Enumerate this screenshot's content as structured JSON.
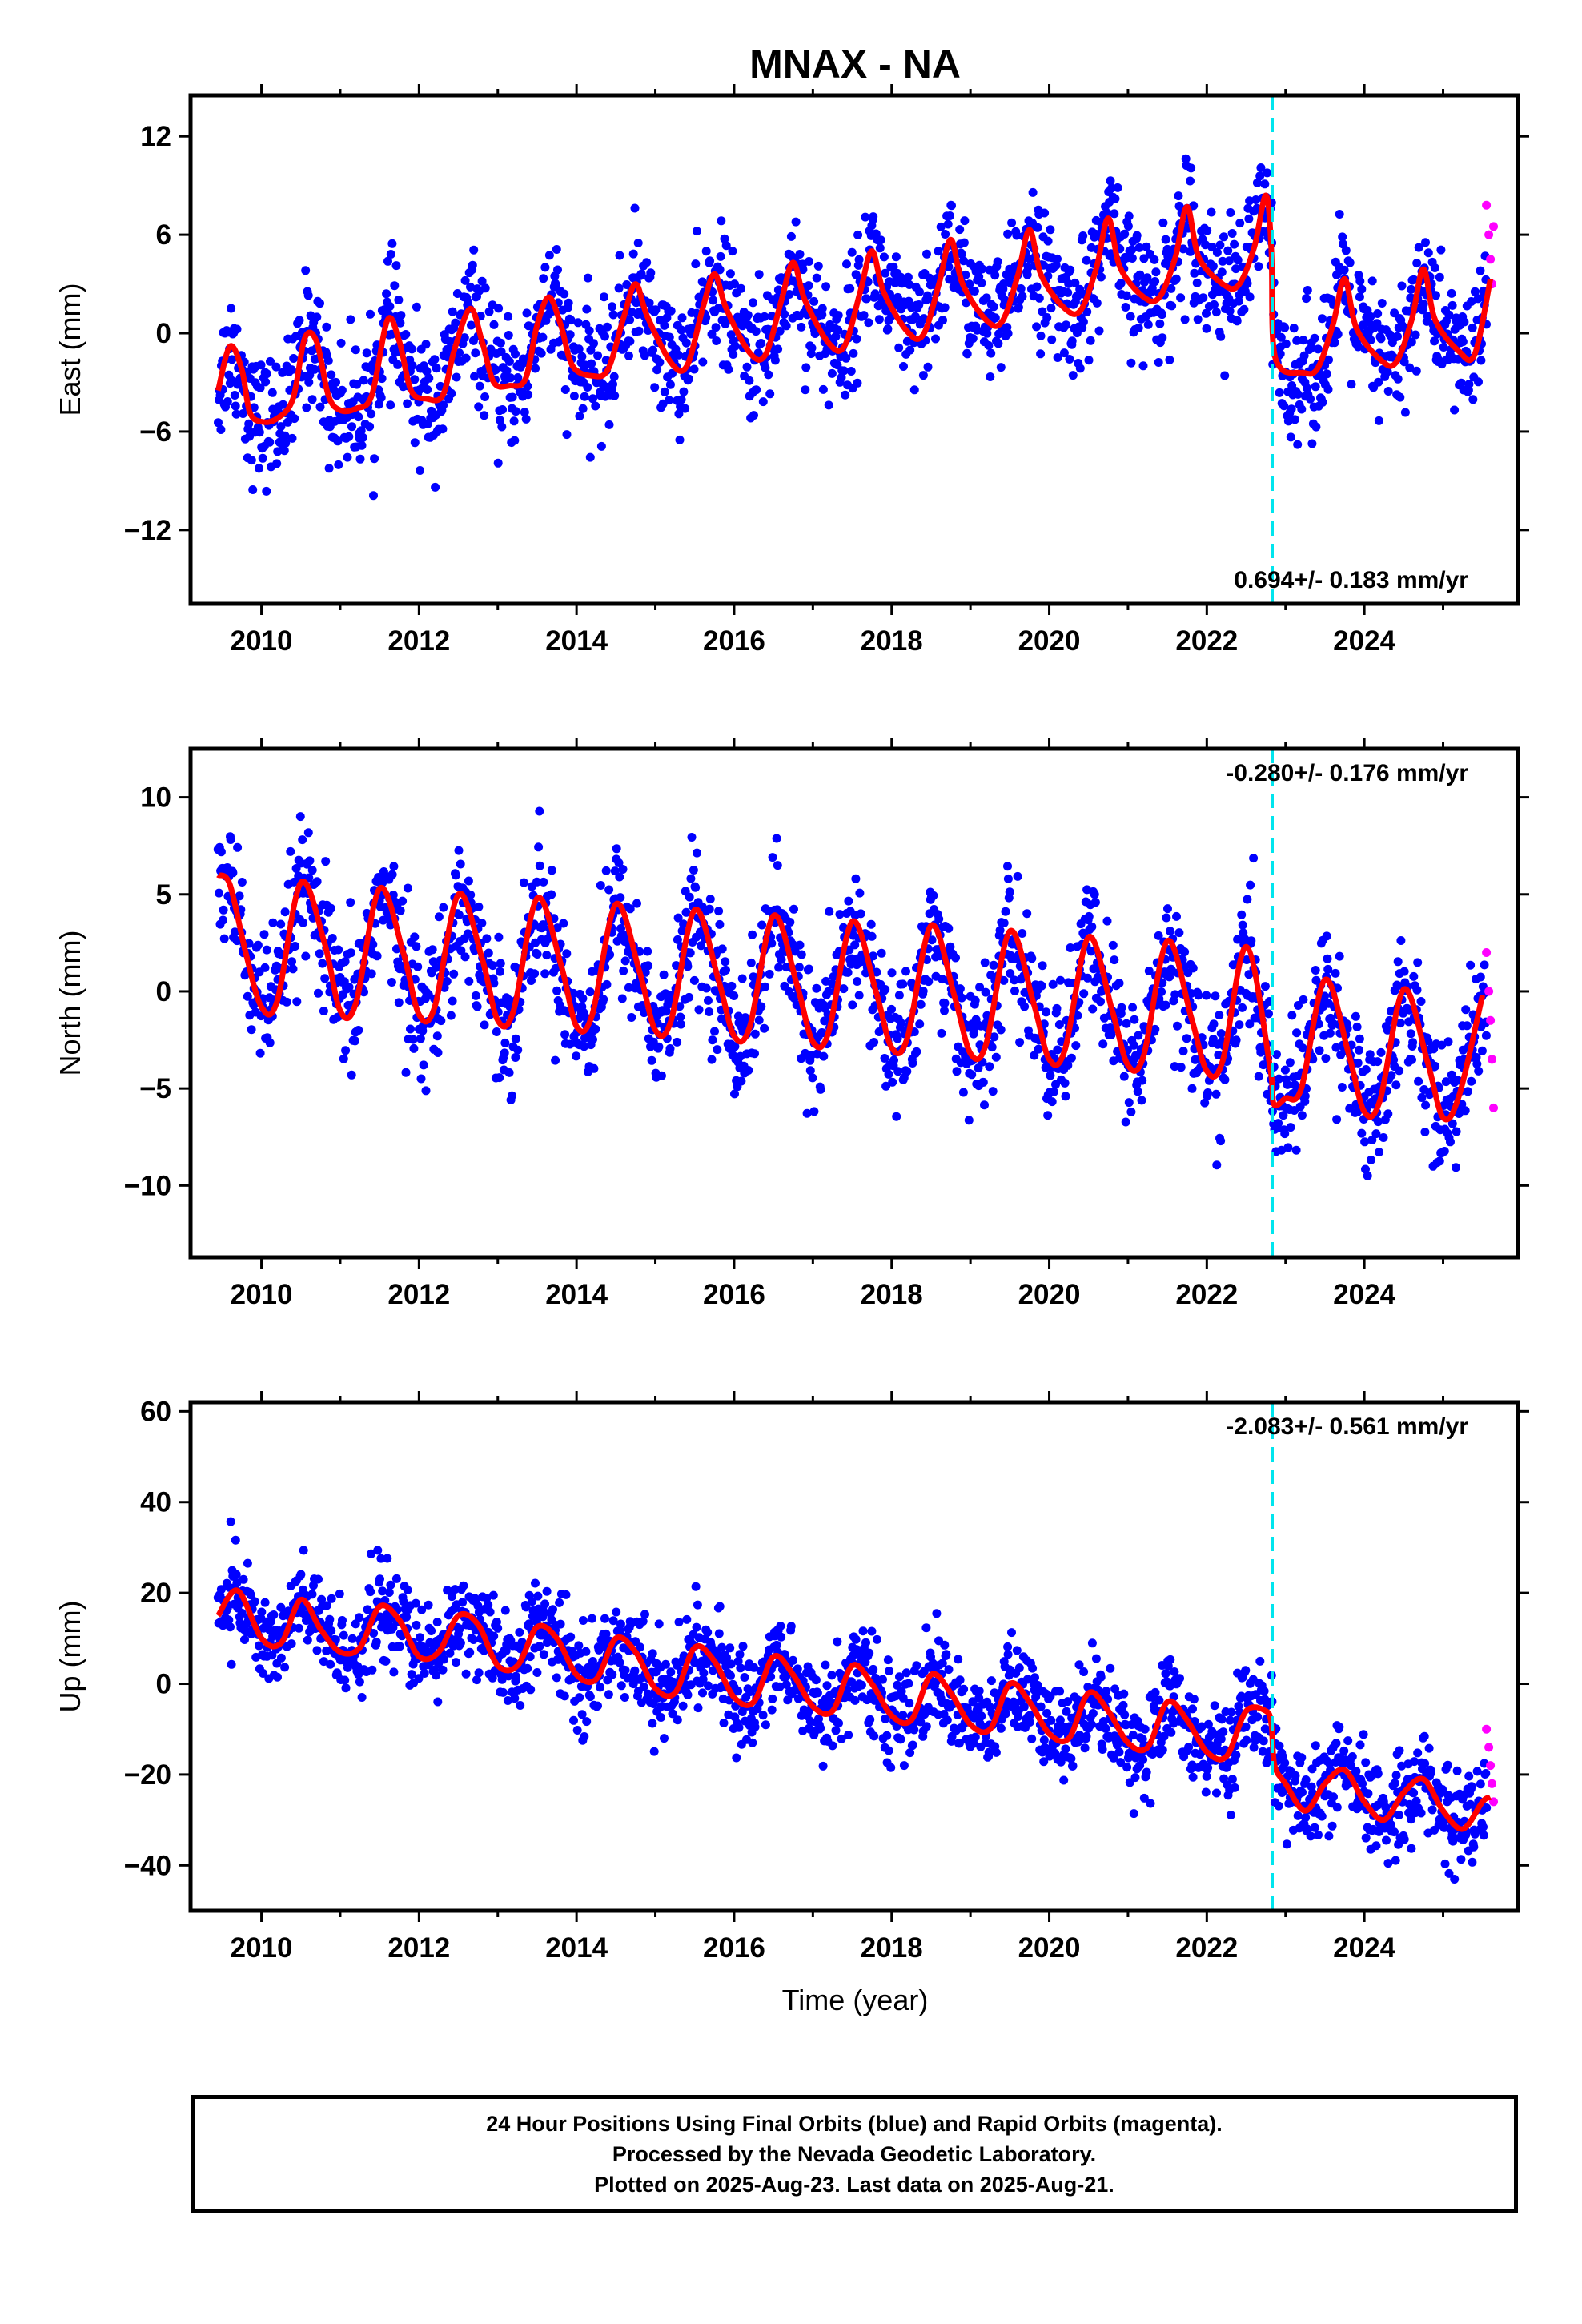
{
  "title": "MNAX - NA",
  "xlabel": "Time (year)",
  "colors": {
    "final_orbits": "#0000ff",
    "rapid_orbits": "#ff00ff",
    "model_fit": "#ff0000",
    "event_line": "#00e5ee"
  },
  "chart_data": [
    {
      "type": "scatter",
      "component": "east",
      "ylabel": "East (mm)",
      "xlim": [
        2009.1,
        2025.95
      ],
      "ylim": [
        -16.5,
        14.5
      ],
      "yticks": [
        -12,
        -6,
        0,
        6,
        12
      ],
      "xticks": [
        2010,
        2012,
        2014,
        2016,
        2018,
        2020,
        2022,
        2024
      ],
      "event_line_x": 2022.83,
      "rate_label": "0.694+/- 0.183 mm/yr",
      "rate_label_position": "bottom-right",
      "model": {
        "x": [
          2009.45,
          2009.6,
          2009.75,
          2009.85,
          2010.0,
          2010.2,
          2010.4,
          2010.55,
          2010.7,
          2010.85,
          2011.0,
          2011.2,
          2011.4,
          2011.6,
          2011.75,
          2011.9,
          2012.1,
          2012.3,
          2012.45,
          2012.65,
          2012.8,
          2012.95,
          2013.15,
          2013.35,
          2013.5,
          2013.65,
          2013.8,
          2013.95,
          2014.2,
          2014.4,
          2014.6,
          2014.75,
          2014.9,
          2015.2,
          2015.4,
          2015.6,
          2015.75,
          2015.9,
          2016.2,
          2016.4,
          2016.6,
          2016.75,
          2016.9,
          2017.2,
          2017.4,
          2017.6,
          2017.75,
          2017.9,
          2018.2,
          2018.4,
          2018.6,
          2018.75,
          2018.9,
          2019.2,
          2019.4,
          2019.6,
          2019.75,
          2019.9,
          2020.2,
          2020.4,
          2020.6,
          2020.75,
          2020.9,
          2021.2,
          2021.4,
          2021.6,
          2021.75,
          2021.9,
          2022.2,
          2022.4,
          2022.6,
          2022.75,
          2022.82,
          2022.84,
          2022.95,
          2023.2,
          2023.4,
          2023.6,
          2023.75,
          2023.9,
          2024.2,
          2024.4,
          2024.6,
          2024.75,
          2024.9,
          2025.2,
          2025.4,
          2025.6
        ],
        "y": [
          -3.5,
          -0.8,
          -2.2,
          -4.8,
          -5.4,
          -5.2,
          -4.0,
          -0.3,
          -0.5,
          -3.8,
          -4.7,
          -4.6,
          -3.8,
          0.8,
          -0.5,
          -3.5,
          -4.0,
          -3.8,
          -1.0,
          1.5,
          -0.5,
          -3.0,
          -3.2,
          -2.8,
          0.5,
          2.2,
          0.5,
          -2.0,
          -2.6,
          -2.2,
          1.0,
          3.0,
          1.0,
          -1.8,
          -2.0,
          1.5,
          3.6,
          1.5,
          -1.2,
          -1.3,
          2.0,
          4.3,
          2.0,
          -0.6,
          -0.8,
          2.5,
          5.0,
          2.5,
          0.1,
          -0.1,
          3.0,
          5.7,
          3.0,
          0.8,
          0.7,
          3.5,
          6.3,
          3.5,
          1.5,
          1.4,
          4.0,
          7.0,
          4.0,
          2.2,
          2.2,
          4.6,
          7.7,
          4.6,
          3.0,
          2.9,
          5.2,
          8.4,
          5.0,
          -0.5,
          -2.2,
          -2.4,
          -2.2,
          0.5,
          3.3,
          0.3,
          -1.6,
          -1.8,
          0.8,
          3.9,
          0.8,
          -1.1,
          -1.3,
          3.3
        ]
      },
      "rapid": {
        "x": [
          2025.55,
          2025.58,
          2025.6,
          2025.62,
          2025.64
        ],
        "y": [
          7.8,
          6.0,
          4.5,
          3.0,
          6.5
        ]
      }
    },
    {
      "type": "scatter",
      "component": "north",
      "ylabel": "North (mm)",
      "xlim": [
        2009.1,
        2025.95
      ],
      "ylim": [
        -13.7,
        12.5
      ],
      "yticks": [
        -10,
        -5,
        0,
        5,
        10
      ],
      "xticks": [
        2010,
        2012,
        2014,
        2016,
        2018,
        2020,
        2022,
        2024
      ],
      "event_line_x": 2022.83,
      "rate_label": "-0.280+/- 0.176 mm/yr",
      "rate_label_position": "top-right",
      "model": {
        "x": [
          2009.45,
          2009.6,
          2009.8,
          2010.0,
          2010.2,
          2010.5,
          2010.8,
          2011.0,
          2011.2,
          2011.5,
          2011.8,
          2012.0,
          2012.2,
          2012.5,
          2012.8,
          2013.0,
          2013.2,
          2013.5,
          2013.8,
          2014.0,
          2014.2,
          2014.5,
          2014.8,
          2015.0,
          2015.2,
          2015.5,
          2015.8,
          2016.0,
          2016.2,
          2016.5,
          2016.8,
          2017.0,
          2017.2,
          2017.5,
          2017.8,
          2018.0,
          2018.2,
          2018.5,
          2018.8,
          2019.0,
          2019.2,
          2019.5,
          2019.8,
          2020.0,
          2020.2,
          2020.5,
          2020.8,
          2021.0,
          2021.2,
          2021.5,
          2021.8,
          2022.0,
          2022.2,
          2022.5,
          2022.8,
          2022.85,
          2023.0,
          2023.2,
          2023.5,
          2023.8,
          2024.0,
          2024.2,
          2024.5,
          2024.8,
          2025.0,
          2025.2,
          2025.5
        ],
        "y": [
          6.0,
          5.5,
          2.0,
          -0.8,
          -0.5,
          5.6,
          2.5,
          -1.0,
          -0.6,
          5.3,
          2.0,
          -1.2,
          -0.8,
          5.0,
          1.7,
          -1.5,
          -1.0,
          4.8,
          1.4,
          -1.8,
          -1.2,
          4.5,
          1.0,
          -2.0,
          -1.5,
          4.2,
          0.6,
          -2.3,
          -1.8,
          3.9,
          0.3,
          -2.6,
          -2.1,
          3.6,
          0.0,
          -2.9,
          -2.4,
          3.4,
          -0.3,
          -3.2,
          -2.7,
          3.1,
          -0.6,
          -3.5,
          -3.0,
          2.8,
          -1.0,
          -3.8,
          -3.3,
          2.6,
          -1.3,
          -4.1,
          -3.6,
          2.3,
          -3.8,
          -5.8,
          -5.5,
          -5.0,
          0.6,
          -3.2,
          -6.2,
          -5.6,
          0.1,
          -3.6,
          -6.5,
          -5.4,
          -0.2
        ]
      },
      "rapid": {
        "x": [
          2025.55,
          2025.58,
          2025.6,
          2025.62,
          2025.64
        ],
        "y": [
          2.0,
          0.0,
          -1.5,
          -3.5,
          -6.0
        ]
      }
    },
    {
      "type": "scatter",
      "component": "up",
      "ylabel": "Up (mm)",
      "xlim": [
        2009.1,
        2025.95
      ],
      "ylim": [
        -50,
        62
      ],
      "yticks": [
        -40,
        -20,
        0,
        20,
        40,
        60
      ],
      "xticks": [
        2010,
        2012,
        2014,
        2016,
        2018,
        2020,
        2022,
        2024
      ],
      "event_line_x": 2022.83,
      "rate_label": "-2.083+/- 0.561 mm/yr",
      "rate_label_position": "top-right",
      "model": {
        "x": [
          2009.45,
          2009.7,
          2010.0,
          2010.25,
          2010.5,
          2010.75,
          2011.0,
          2011.25,
          2011.5,
          2011.75,
          2012.0,
          2012.25,
          2012.5,
          2012.75,
          2013.0,
          2013.25,
          2013.5,
          2013.75,
          2014.0,
          2014.25,
          2014.5,
          2014.75,
          2015.0,
          2015.25,
          2015.5,
          2015.75,
          2016.0,
          2016.25,
          2016.5,
          2016.75,
          2017.0,
          2017.25,
          2017.5,
          2017.75,
          2018.0,
          2018.25,
          2018.5,
          2018.75,
          2019.0,
          2019.25,
          2019.5,
          2019.75,
          2020.0,
          2020.25,
          2020.5,
          2020.75,
          2021.0,
          2021.25,
          2021.5,
          2021.75,
          2022.0,
          2022.25,
          2022.5,
          2022.75,
          2022.82,
          2022.86,
          2023.0,
          2023.25,
          2023.5,
          2023.75,
          2024.0,
          2024.25,
          2024.5,
          2024.75,
          2025.0,
          2025.25,
          2025.5,
          2025.6
        ],
        "y": [
          15,
          20.5,
          10,
          9,
          18.5,
          12,
          7,
          8,
          17,
          14,
          6,
          7,
          15,
          13,
          4,
          4,
          12.5,
          10,
          2,
          1,
          10,
          7,
          -1,
          -2,
          8,
          5,
          -3,
          -4,
          6,
          2,
          -5,
          -6,
          4,
          0,
          -7,
          -8,
          2,
          -2,
          -9,
          -10,
          0,
          -4,
          -11,
          -12,
          -2,
          -6,
          -13,
          -14,
          -4,
          -8,
          -15,
          -16,
          -6,
          -6,
          -9,
          -18,
          -22,
          -28,
          -22,
          -19,
          -26,
          -30,
          -24,
          -21,
          -28,
          -32,
          -26,
          -25
        ]
      },
      "rapid": {
        "x": [
          2025.55,
          2025.58,
          2025.6,
          2025.62,
          2025.64
        ],
        "y": [
          -10,
          -14,
          -18,
          -22,
          -26
        ]
      }
    }
  ],
  "footer": {
    "line1": "24 Hour Positions Using Final Orbits (blue) and Rapid Orbits (magenta).",
    "line2": "Processed by the Nevada Geodetic Laboratory.",
    "line3": "Plotted on 2025-Aug-23. Last data on 2025-Aug-21."
  }
}
